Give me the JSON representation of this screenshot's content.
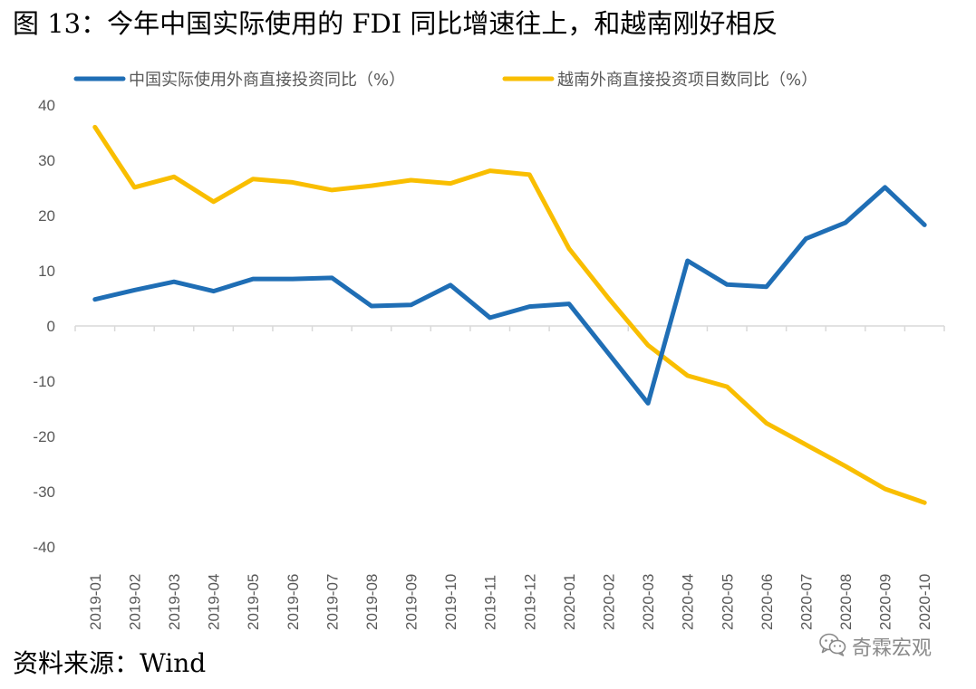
{
  "figure_title": "图 13：今年中国实际使用的 FDI 同比增速往上，和越南刚好相反",
  "source_note": "资料来源：Wind",
  "watermark": {
    "icon": "wechat-icon",
    "text": "奇霖宏观"
  },
  "colors": {
    "china_series": "#1F6EB5",
    "vietnam_series": "#F9BE00",
    "axis": "#D9D9D9",
    "tick_text": "#595959"
  },
  "chart_data": {
    "type": "line",
    "x": [
      "2019-01",
      "2019-02",
      "2019-03",
      "2019-04",
      "2019-05",
      "2019-06",
      "2019-07",
      "2019-08",
      "2019-09",
      "2019-10",
      "2019-11",
      "2019-12",
      "2020-01",
      "2020-02",
      "2020-03",
      "2020-04",
      "2020-05",
      "2020-06",
      "2020-07",
      "2020-08",
      "2020-09",
      "2020-10"
    ],
    "ylim": [
      -40,
      40
    ],
    "yticks": [
      40,
      30,
      20,
      10,
      0,
      -10,
      -20,
      -30,
      -40
    ],
    "grid": false,
    "legend_position": "top",
    "series": [
      {
        "name": "中国实际使用外商直接投资同比（%）",
        "values": [
          4.8,
          6.5,
          8.0,
          6.3,
          8.5,
          8.5,
          8.7,
          3.6,
          3.8,
          7.4,
          1.5,
          3.5,
          4.0,
          -5.0,
          -14.0,
          11.8,
          7.5,
          7.1,
          15.8,
          18.7,
          25.1,
          18.3
        ]
      },
      {
        "name": "越南外商直接投资项目数同比（%）",
        "values": [
          36.0,
          25.1,
          27.0,
          22.5,
          26.6,
          26.0,
          24.6,
          25.4,
          26.4,
          25.8,
          28.1,
          27.4,
          14.0,
          5.0,
          -3.5,
          -9.0,
          -11.0,
          -17.6,
          -21.5,
          -25.4,
          -29.5,
          -32.0
        ]
      }
    ]
  }
}
